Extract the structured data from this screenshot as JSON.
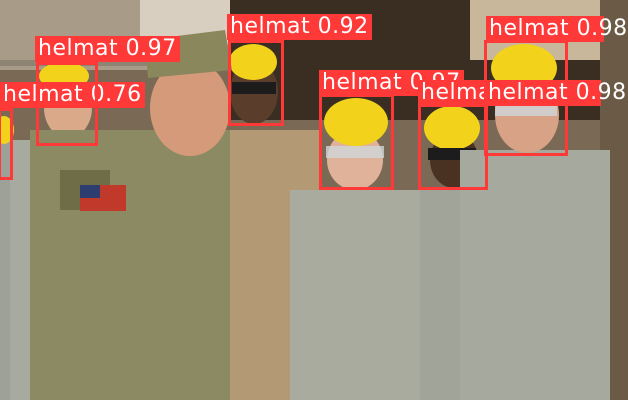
{
  "colors": {
    "box": "#ff3838",
    "label_text": "#ffffff"
  },
  "detections": [
    {
      "label": "helmat",
      "confidence": "0.76",
      "text": "helmat 0.76"
    },
    {
      "label": "helmat",
      "confidence": "0.97",
      "text": "helmat 0.97"
    },
    {
      "label": "helmat",
      "confidence": "0.92",
      "text": "helmat 0.92"
    },
    {
      "label": "helmat",
      "confidence": "0.97",
      "text": "helmat 0.97"
    },
    {
      "label": "helmat",
      "confidence": "0.98",
      "text": "helmat 0.98"
    },
    {
      "label": "helmat",
      "confidence": "",
      "text": "helmat"
    }
  ]
}
